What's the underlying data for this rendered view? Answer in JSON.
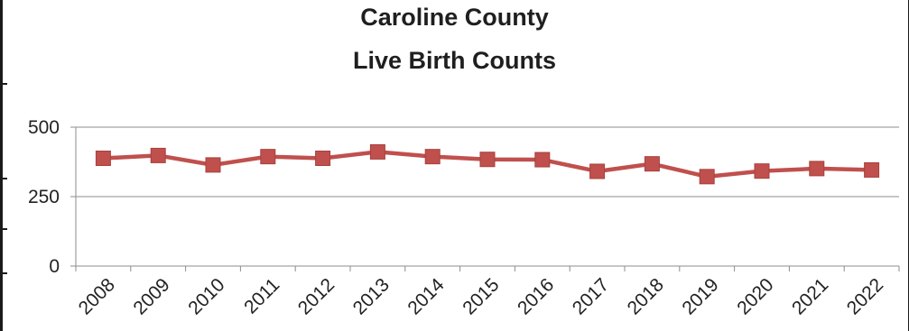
{
  "chart_data": {
    "type": "line",
    "title": [
      "Caroline County",
      "Live Birth Counts"
    ],
    "xlabel": "",
    "ylabel": "",
    "categories": [
      "2008",
      "2009",
      "2010",
      "2011",
      "2012",
      "2013",
      "2014",
      "2015",
      "2016",
      "2017",
      "2018",
      "2019",
      "2020",
      "2021",
      "2022"
    ],
    "series": [
      {
        "values": [
          388,
          398,
          364,
          394,
          388,
          411,
          394,
          384,
          383,
          341,
          368,
          322,
          342,
          351,
          346
        ],
        "color": "#c0504d",
        "marker": "square"
      }
    ],
    "yticks": [
      "0",
      "250",
      "500"
    ],
    "ylim": [
      0,
      500
    ],
    "grid": "horizontal",
    "legend": "none"
  }
}
